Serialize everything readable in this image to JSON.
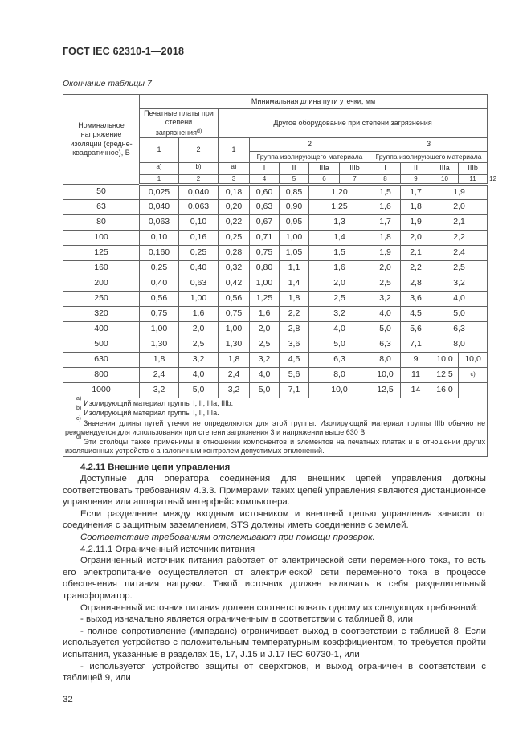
{
  "page": {
    "doc_code": "ГОСТ IEC 62310-1—2018",
    "table_caption": "Окончание таблицы 7",
    "page_number": "32"
  },
  "table": {
    "header": {
      "col1": "Номинальное\nнапряжение\nизоляции (средне-\nквадратичное), В",
      "top": "Минимальная длина пути утечки, мм",
      "pcb": "Печатные платы при степени загрязнения",
      "pcb_note": "d)",
      "other": "Другое оборудование при степени загрязнения",
      "pcb_deg1": "1",
      "pcb_deg2": "2",
      "other_deg1": "1",
      "other_deg2": "2",
      "other_deg3": "3",
      "group_label": "Группа изолирующего материала",
      "sub": [
        "a)",
        "b)",
        "a)",
        "I",
        "II",
        "IIIa",
        "IIIb",
        "I",
        "II",
        "IIIa",
        "IIIb"
      ],
      "col_numbers": [
        "1",
        "2",
        "3",
        "4",
        "5",
        "6",
        "7",
        "8",
        "9",
        "10",
        "11",
        "12"
      ]
    },
    "rows": [
      {
        "v": "50",
        "cells": [
          {
            "t": "0,025"
          },
          {
            "t": "0,040"
          },
          {
            "t": "0,18"
          },
          {
            "t": "0,60"
          },
          {
            "t": "0,85"
          },
          {
            "t": "1,20",
            "cs": 2
          },
          {
            "t": "1,5"
          },
          {
            "t": "1,7"
          },
          {
            "t": "1,9",
            "cs": 2
          }
        ]
      },
      {
        "v": "63",
        "cells": [
          {
            "t": "0,040"
          },
          {
            "t": "0,063"
          },
          {
            "t": "0,20"
          },
          {
            "t": "0,63"
          },
          {
            "t": "0,90"
          },
          {
            "t": "1,25",
            "cs": 2
          },
          {
            "t": "1,6"
          },
          {
            "t": "1,8"
          },
          {
            "t": "2,0",
            "cs": 2
          }
        ]
      },
      {
        "v": "80",
        "cells": [
          {
            "t": "0,063"
          },
          {
            "t": "0,10"
          },
          {
            "t": "0,22"
          },
          {
            "t": "0,67"
          },
          {
            "t": "0,95"
          },
          {
            "t": "1,3",
            "cs": 2
          },
          {
            "t": "1,7"
          },
          {
            "t": "1,9"
          },
          {
            "t": "2,1",
            "cs": 2
          }
        ]
      },
      {
        "v": "100",
        "cells": [
          {
            "t": "0,10"
          },
          {
            "t": "0,16"
          },
          {
            "t": "0,25"
          },
          {
            "t": "0,71"
          },
          {
            "t": "1,00"
          },
          {
            "t": "1,4",
            "cs": 2
          },
          {
            "t": "1,8"
          },
          {
            "t": "2,0"
          },
          {
            "t": "2,2",
            "cs": 2
          }
        ]
      },
      {
        "v": "125",
        "cells": [
          {
            "t": "0,160"
          },
          {
            "t": "0,25"
          },
          {
            "t": "0,28"
          },
          {
            "t": "0,75"
          },
          {
            "t": "1,05"
          },
          {
            "t": "1,5",
            "cs": 2
          },
          {
            "t": "1,9"
          },
          {
            "t": "2,1"
          },
          {
            "t": "2,4",
            "cs": 2
          }
        ]
      },
      {
        "v": "160",
        "cells": [
          {
            "t": "0,25"
          },
          {
            "t": "0,40"
          },
          {
            "t": "0,32"
          },
          {
            "t": "0,80"
          },
          {
            "t": "1,1"
          },
          {
            "t": "1,6",
            "cs": 2
          },
          {
            "t": "2,0"
          },
          {
            "t": "2,2"
          },
          {
            "t": "2,5",
            "cs": 2
          }
        ]
      },
      {
        "v": "200",
        "cells": [
          {
            "t": "0,40"
          },
          {
            "t": "0,63"
          },
          {
            "t": "0,42"
          },
          {
            "t": "1,00"
          },
          {
            "t": "1,4"
          },
          {
            "t": "2,0",
            "cs": 2
          },
          {
            "t": "2,5"
          },
          {
            "t": "2,8"
          },
          {
            "t": "3,2",
            "cs": 2
          }
        ]
      },
      {
        "v": "250",
        "cells": [
          {
            "t": "0,56"
          },
          {
            "t": "1,00"
          },
          {
            "t": "0,56"
          },
          {
            "t": "1,25"
          },
          {
            "t": "1,8"
          },
          {
            "t": "2,5",
            "cs": 2
          },
          {
            "t": "3,2"
          },
          {
            "t": "3,6"
          },
          {
            "t": "4,0",
            "cs": 2
          }
        ]
      },
      {
        "v": "320",
        "cells": [
          {
            "t": "0,75"
          },
          {
            "t": "1,6"
          },
          {
            "t": "0,75"
          },
          {
            "t": "1,6"
          },
          {
            "t": "2,2"
          },
          {
            "t": "3,2",
            "cs": 2
          },
          {
            "t": "4,0"
          },
          {
            "t": "4,5"
          },
          {
            "t": "5,0",
            "cs": 2
          }
        ]
      },
      {
        "v": "400",
        "cells": [
          {
            "t": "1,00"
          },
          {
            "t": "2,0"
          },
          {
            "t": "1,00"
          },
          {
            "t": "2,0"
          },
          {
            "t": "2,8"
          },
          {
            "t": "4,0",
            "cs": 2
          },
          {
            "t": "5,0"
          },
          {
            "t": "5,6"
          },
          {
            "t": "6,3",
            "cs": 2
          }
        ]
      },
      {
        "v": "500",
        "cells": [
          {
            "t": "1,30"
          },
          {
            "t": "2,5"
          },
          {
            "t": "1,30"
          },
          {
            "t": "2,5"
          },
          {
            "t": "3,6"
          },
          {
            "t": "5,0",
            "cs": 2
          },
          {
            "t": "6,3"
          },
          {
            "t": "7,1"
          },
          {
            "t": "8,0",
            "cs": 2
          }
        ]
      },
      {
        "v": "630",
        "cells": [
          {
            "t": "1,8"
          },
          {
            "t": "3,2"
          },
          {
            "t": "1,8"
          },
          {
            "t": "3,2"
          },
          {
            "t": "4,5"
          },
          {
            "t": "6,3",
            "cs": 2
          },
          {
            "t": "8,0"
          },
          {
            "t": "9"
          },
          {
            "t": "10,0"
          },
          {
            "t": "10,0"
          }
        ]
      },
      {
        "v": "800",
        "cells": [
          {
            "t": "2,4"
          },
          {
            "t": "4,0"
          },
          {
            "t": "2,4"
          },
          {
            "t": "4,0"
          },
          {
            "t": "5,6"
          },
          {
            "t": "8,0",
            "cs": 2
          },
          {
            "t": "10,0"
          },
          {
            "t": "11"
          },
          {
            "t": "12,5"
          },
          {
            "t": "c)",
            "sup": true
          }
        ]
      },
      {
        "v": "1000",
        "cells": [
          {
            "t": "3,2"
          },
          {
            "t": "5,0"
          },
          {
            "t": "3,2"
          },
          {
            "t": "5,0"
          },
          {
            "t": "7,1"
          },
          {
            "t": "10,0",
            "cs": 2
          },
          {
            "t": "12,5"
          },
          {
            "t": "14"
          },
          {
            "t": "16,0"
          },
          {
            "t": ""
          }
        ]
      }
    ],
    "footnotes": [
      {
        "mark": "a)",
        "text": "Изолирующий материал группы I, II, IIIa, IIIb."
      },
      {
        "mark": "b)",
        "text": "Изолирующий материал группы I, II, IIIa."
      },
      {
        "mark": "c)",
        "text": "Значения длины путей утечки не определяются для этой группы. Изолирующий материал группы IIIb обычно не рекомендуется для использования при степени загрязнения 3 и напряжении выше 630 В."
      },
      {
        "mark": "d)",
        "text": "Эти столбцы также применимы в отношении компонентов и элементов на печатных платах и в отношении других изоляционных устройств с аналогичным контролем допустимых отклонений."
      }
    ]
  },
  "sections": [
    {
      "type": "heading",
      "text": "4.2.11 Внешние цепи управления"
    },
    {
      "type": "para",
      "text": "Доступные для оператора соединения для внешних цепей управления должны соответствовать требованиям 4.3.3. Примерами таких цепей управления являются дистанционное управление или аппаратный интерфейс компьютера."
    },
    {
      "type": "para",
      "text": "Если разделение между входным источником и внешней цепью управления зависит от соединения с защитным заземлением, STS должны иметь соединение с землей."
    },
    {
      "type": "italic",
      "text": "Соответствие требованиям отслеживают при помощи проверок."
    },
    {
      "type": "plain",
      "text": "4.2.11.1 Ограниченный источник питания"
    },
    {
      "type": "para",
      "text": "Ограниченный источник питания работает от электрической сети переменного тока, то есть его электропитание осуществляется от электрической сети переменного тока в процессе обеспечения питания нагрузки. Такой источник должен включать в себя разделительный трансформатор."
    },
    {
      "type": "para",
      "text": "Ограниченный источник питания должен соответствовать одному из следующих требований:"
    },
    {
      "type": "para",
      "text": "- выход изначально является ограниченным в соответствии с таблицей 8, или"
    },
    {
      "type": "para",
      "text": "- полное сопротивление (импеданс) ограничивает выход в соответствии с таблицей 8. Если используется устройство с положительным температурным коэффициентом, то требуется пройти испытания, указанные в разделах 15, 17, J.15 и J.17 IEC 60730-1, или"
    },
    {
      "type": "para",
      "text": "- используется устройство защиты от сверхтоков, и выход ограничен в соответствии с таблицей 9, или"
    }
  ]
}
